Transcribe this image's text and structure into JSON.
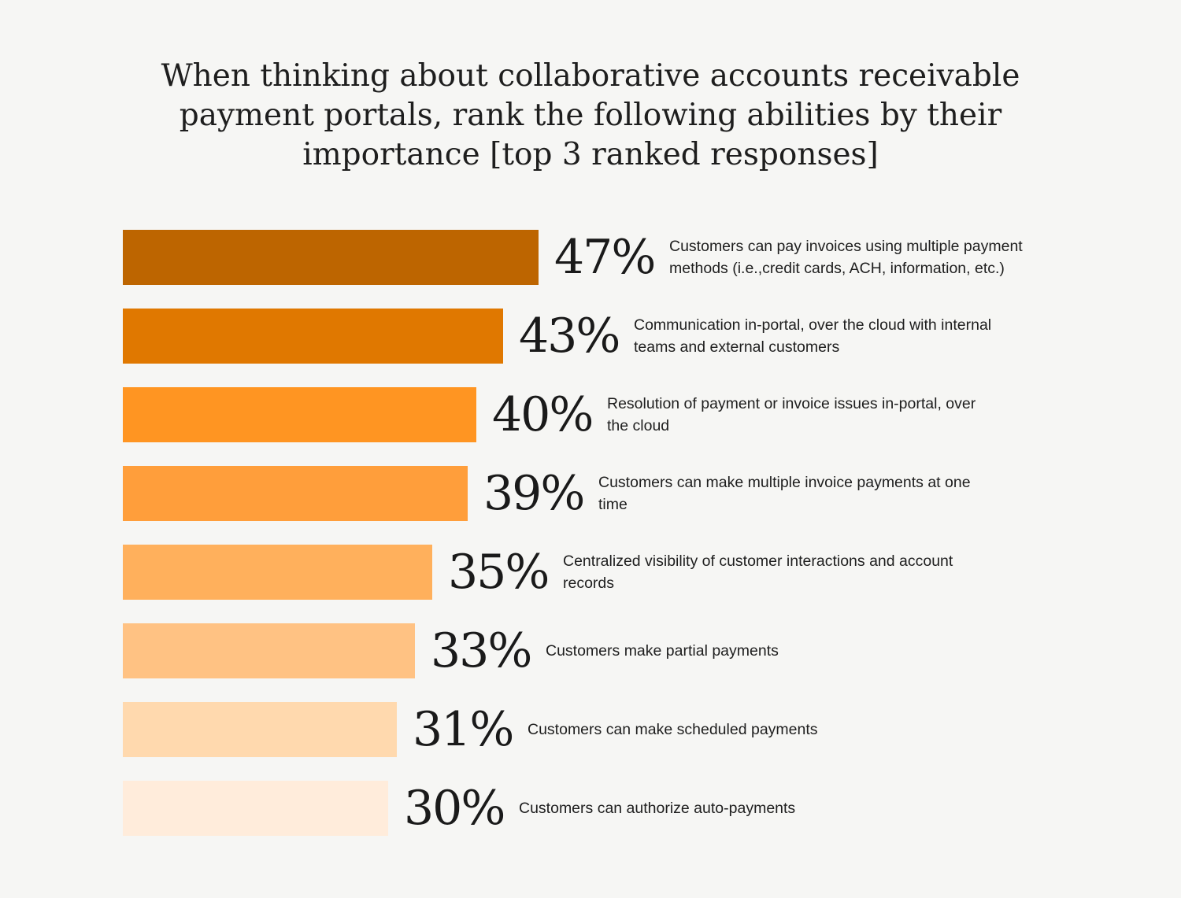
{
  "title": {
    "lines": [
      "When thinking about collaborative accounts receivable",
      "payment portals, rank the following abilities by their",
      "importance [top 3 ranked responses]"
    ]
  },
  "chart_data": {
    "type": "bar",
    "orientation": "horizontal",
    "title": "When thinking about collaborative accounts receivable payment portals, rank the following abilities by their importance [top 3 ranked responses]",
    "unit": "%",
    "xlim": [
      0,
      47
    ],
    "grid": false,
    "legend": "none",
    "categories": [
      "Customers can pay invoices using multiple payment methods (i.e.,credit cards, ACH, information, etc.)",
      "Communication in-portal, over the cloud with internal teams and external customers",
      "Resolution of payment or invoice issues in-portal, over the cloud",
      "Customers can make multiple invoice payments at one time",
      "Centralized visibility of customer interactions and account records",
      "Customers make partial payments",
      "Customers can make scheduled payments",
      "Customers can authorize auto-payments"
    ],
    "values": [
      47,
      43,
      40,
      39,
      35,
      33,
      31,
      30
    ],
    "value_labels": [
      "47%",
      "43%",
      "40%",
      "39%",
      "35%",
      "33%",
      "31%",
      "30%"
    ],
    "bar_colors": [
      "#bd6500",
      "#e07800",
      "#ff9522",
      "#ff9e3b",
      "#ffb05c",
      "#ffc283",
      "#ffd9ae",
      "#ffecdb"
    ]
  }
}
